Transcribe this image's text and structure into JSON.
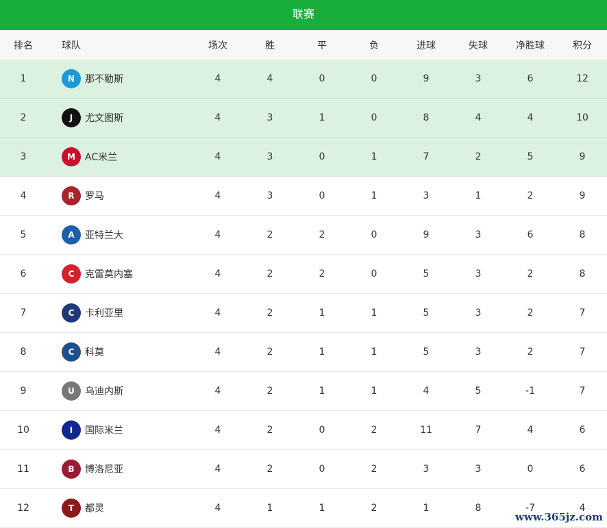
{
  "title": "联赛",
  "headers": [
    "排名",
    "球队",
    "场次",
    "胜",
    "平",
    "负",
    "进球",
    "失球",
    "净胜球",
    "积分"
  ],
  "rows": [
    {
      "rank": "1",
      "team": "那不勒斯",
      "logo": "napoli-logo",
      "color": "#1a9bd7",
      "mark": "N",
      "p": "4",
      "w": "4",
      "d": "0",
      "l": "0",
      "gf": "9",
      "ga": "3",
      "gd": "6",
      "pts": "12"
    },
    {
      "rank": "2",
      "team": "尤文图斯",
      "logo": "juventus-logo",
      "color": "#111111",
      "mark": "J",
      "p": "4",
      "w": "3",
      "d": "1",
      "l": "0",
      "gf": "8",
      "ga": "4",
      "gd": "4",
      "pts": "10"
    },
    {
      "rank": "3",
      "team": "AC米兰",
      "logo": "ac-milan-logo",
      "color": "#c8102e",
      "mark": "M",
      "p": "4",
      "w": "3",
      "d": "0",
      "l": "1",
      "gf": "7",
      "ga": "2",
      "gd": "5",
      "pts": "9"
    },
    {
      "rank": "4",
      "team": "罗马",
      "logo": "roma-logo",
      "color": "#a8232b",
      "mark": "R",
      "p": "4",
      "w": "3",
      "d": "0",
      "l": "1",
      "gf": "3",
      "ga": "1",
      "gd": "2",
      "pts": "9"
    },
    {
      "rank": "5",
      "team": "亚特兰大",
      "logo": "atalanta-logo",
      "color": "#1d5fa8",
      "mark": "A",
      "p": "4",
      "w": "2",
      "d": "2",
      "l": "0",
      "gf": "9",
      "ga": "3",
      "gd": "6",
      "pts": "8"
    },
    {
      "rank": "6",
      "team": "克雷莫内塞",
      "logo": "cremonese-logo",
      "color": "#d2232a",
      "mark": "C",
      "p": "4",
      "w": "2",
      "d": "2",
      "l": "0",
      "gf": "5",
      "ga": "3",
      "gd": "2",
      "pts": "8"
    },
    {
      "rank": "7",
      "team": "卡利亚里",
      "logo": "cagliari-logo",
      "color": "#1f3a7a",
      "mark": "C",
      "p": "4",
      "w": "2",
      "d": "1",
      "l": "1",
      "gf": "5",
      "ga": "3",
      "gd": "2",
      "pts": "7"
    },
    {
      "rank": "8",
      "team": "科莫",
      "logo": "como-logo",
      "color": "#1d4f8c",
      "mark": "C",
      "p": "4",
      "w": "2",
      "d": "1",
      "l": "1",
      "gf": "5",
      "ga": "3",
      "gd": "2",
      "pts": "7"
    },
    {
      "rank": "9",
      "team": "乌迪内斯",
      "logo": "udinese-logo",
      "color": "#777777",
      "mark": "U",
      "p": "4",
      "w": "2",
      "d": "1",
      "l": "1",
      "gf": "4",
      "ga": "5",
      "gd": "-1",
      "pts": "7"
    },
    {
      "rank": "10",
      "team": "国际米兰",
      "logo": "inter-logo",
      "color": "#10288c",
      "mark": "I",
      "p": "4",
      "w": "2",
      "d": "0",
      "l": "2",
      "gf": "11",
      "ga": "7",
      "gd": "4",
      "pts": "6"
    },
    {
      "rank": "11",
      "team": "博洛尼亚",
      "logo": "bologna-logo",
      "color": "#9b1c31",
      "mark": "B",
      "p": "4",
      "w": "2",
      "d": "0",
      "l": "2",
      "gf": "3",
      "ga": "3",
      "gd": "0",
      "pts": "6"
    },
    {
      "rank": "12",
      "team": "都灵",
      "logo": "torino-logo",
      "color": "#8b1a1a",
      "mark": "T",
      "p": "4",
      "w": "1",
      "d": "1",
      "l": "2",
      "gf": "1",
      "ga": "8",
      "gd": "-7",
      "pts": "4"
    }
  ],
  "watermark": "www.365jz.com"
}
